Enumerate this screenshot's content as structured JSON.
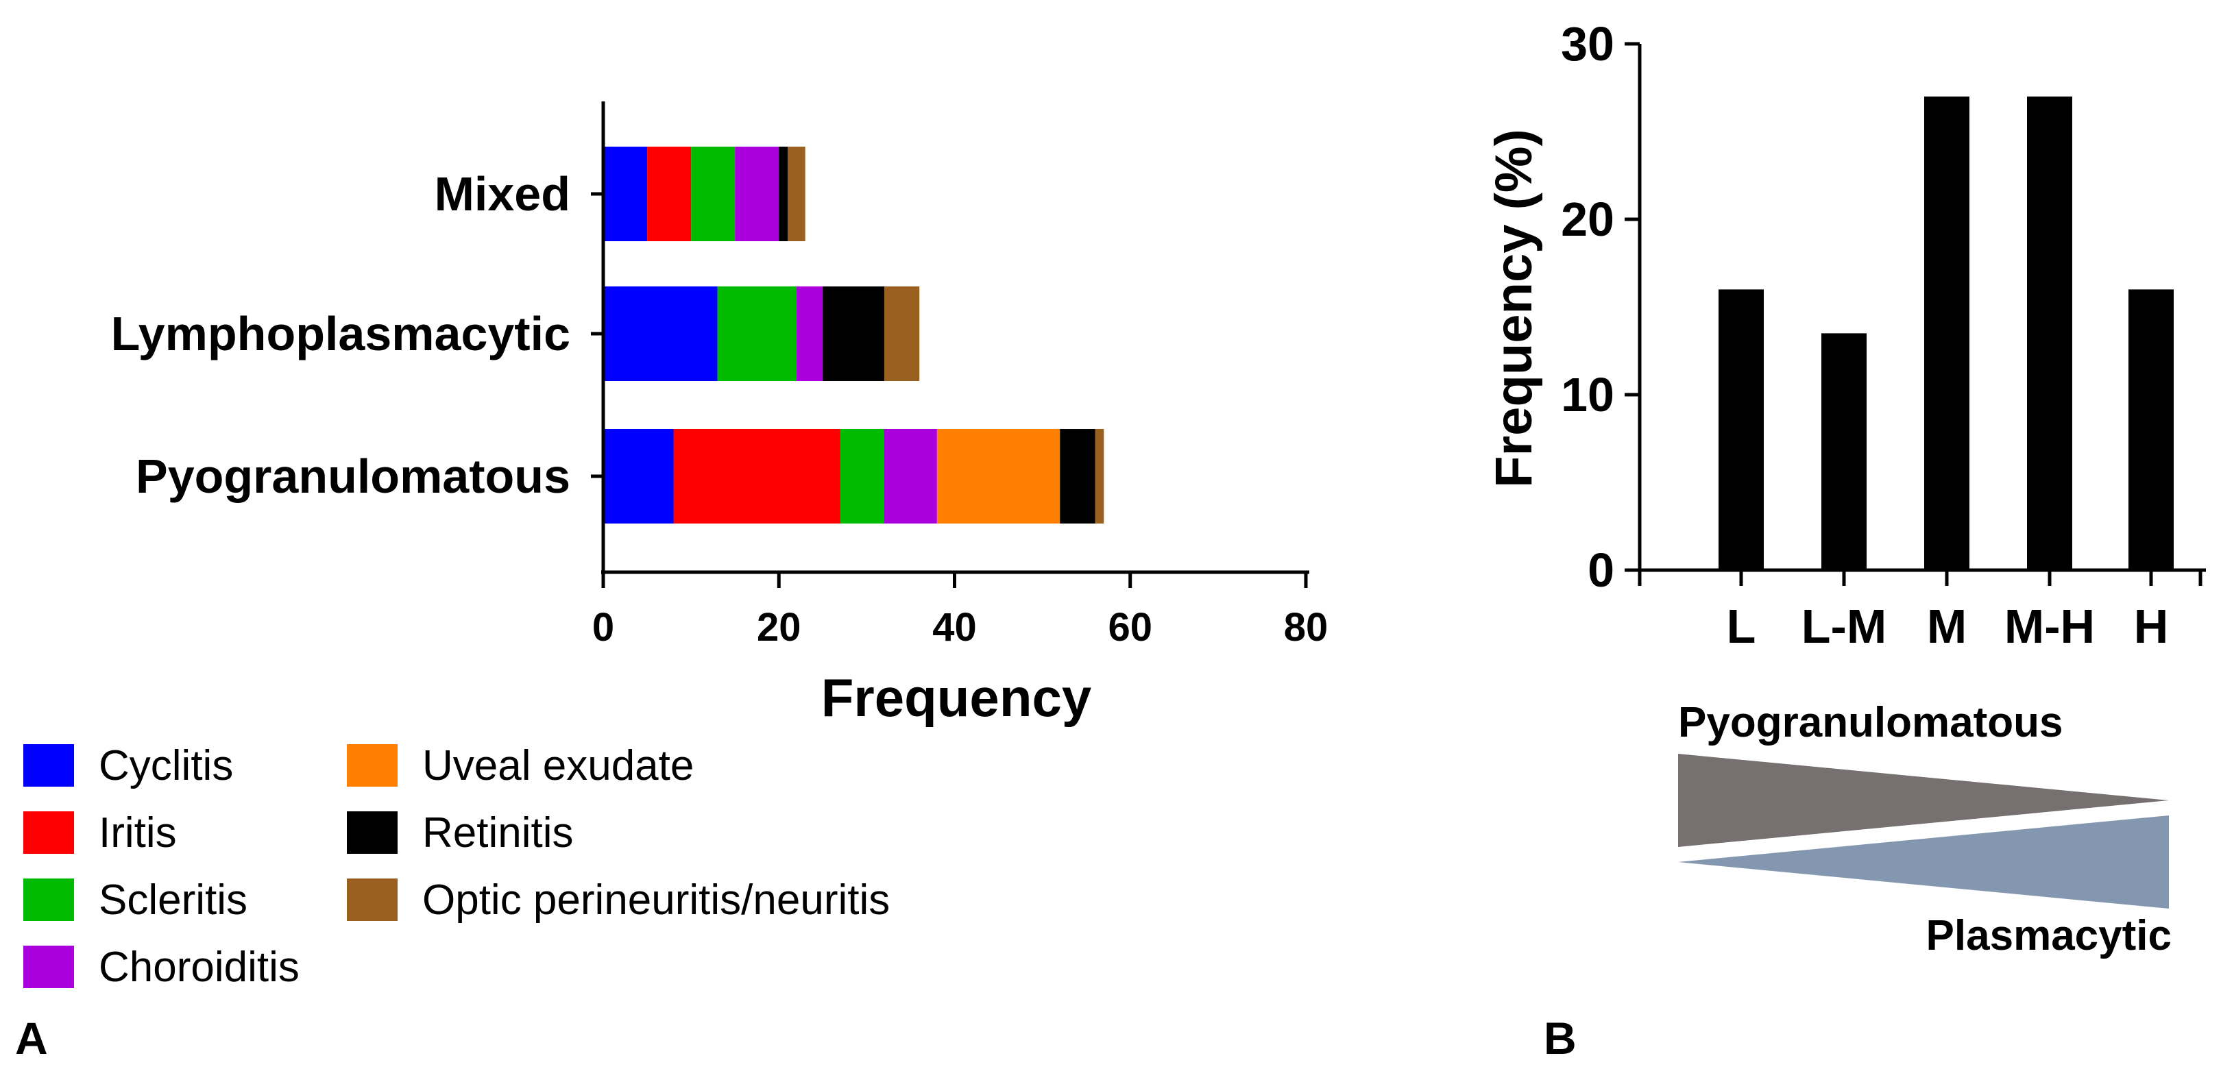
{
  "chart_data": [
    {
      "panel": "A",
      "type": "bar",
      "orientation": "horizontal",
      "stacked": true,
      "categories": [
        "Mixed",
        "Lymphoplasmacytic",
        "Pyogranulomatous"
      ],
      "series": [
        {
          "name": "Cyclitis",
          "color": "#0000ff",
          "values": [
            5,
            13,
            8
          ]
        },
        {
          "name": "Iritis",
          "color": "#ff0000",
          "values": [
            5,
            0,
            19
          ]
        },
        {
          "name": "Scleritis",
          "color": "#00bb00",
          "values": [
            5,
            9,
            5
          ]
        },
        {
          "name": "Choroiditis",
          "color": "#aa00dd",
          "values": [
            5,
            3,
            6
          ]
        },
        {
          "name": "Uveal exudate",
          "color": "#ff8000",
          "values": [
            0,
            0,
            14
          ]
        },
        {
          "name": "Retinitis",
          "color": "#000000",
          "values": [
            1,
            7,
            4
          ]
        },
        {
          "name": "Optic perineuritis/neuritis",
          "color": "#996020",
          "values": [
            2,
            4,
            1
          ]
        }
      ],
      "title": "",
      "xlabel": "Frequency",
      "ylabel": "",
      "xlim": [
        0,
        80
      ],
      "xticks": [
        "0",
        "20",
        "40",
        "60",
        "80"
      ],
      "legend_position": "bottom-left",
      "panel_label": "A"
    },
    {
      "panel": "B",
      "type": "bar",
      "orientation": "vertical",
      "categories": [
        "L",
        "L-M",
        "M",
        "M-H",
        "H"
      ],
      "values": [
        16,
        13.5,
        27,
        27,
        16
      ],
      "bar_color": "#000000",
      "title": "",
      "xlabel": "",
      "ylabel": "Frequency (%)",
      "ylim": [
        0,
        30
      ],
      "yticks": [
        "0",
        "10",
        "20",
        "30"
      ],
      "gradient": {
        "top_label": "Pyogranulomatous",
        "top_color": "#767170",
        "bottom_label": "Plasmacytic",
        "bottom_color": "#8497b0"
      },
      "panel_label": "B"
    }
  ]
}
